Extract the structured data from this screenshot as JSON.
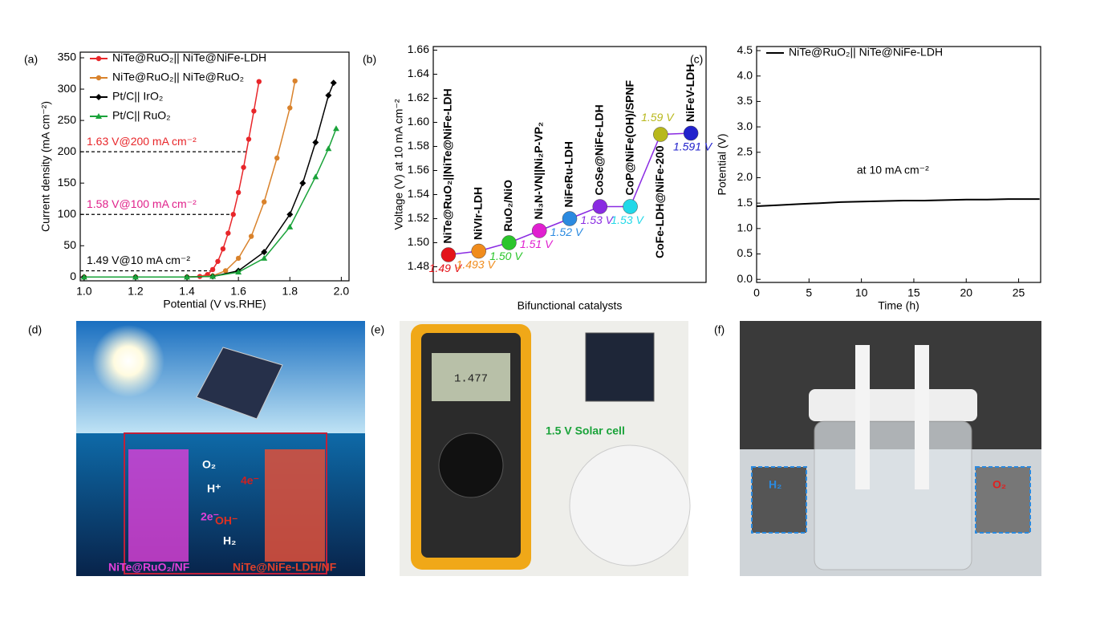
{
  "chart_data": [
    {
      "type": "line",
      "panel": "(a)",
      "x_label": "Potential (V vs.RHE)",
      "y_label": "Current density (mA cm⁻²)",
      "xlim": [
        0.985,
        2.03
      ],
      "xticks": [
        {
          "value": 1.0,
          "label": "1.0"
        },
        1.2,
        1.4,
        1.6,
        1.8,
        {
          "value": 2.0,
          "label": "2.0"
        }
      ],
      "ylim": [
        -6,
        359
      ],
      "yticks": [
        0,
        50,
        100,
        150,
        200,
        250,
        300,
        350
      ],
      "legend": "upper left",
      "series": [
        {
          "name": "NiTe@RuO₂|| NiTe@NiFe-LDH",
          "color": "#e8262a",
          "marker": "circle",
          "x": [
            1.0,
            1.2,
            1.4,
            1.45,
            1.48,
            1.5,
            1.52,
            1.54,
            1.56,
            1.58,
            1.6,
            1.62,
            1.64,
            1.66,
            1.68
          ],
          "values": [
            0,
            0,
            0,
            1,
            4,
            12,
            25,
            45,
            70,
            100,
            135,
            175,
            220,
            265,
            312
          ]
        },
        {
          "name": "NiTe@RuO₂|| NiTe@RuO₂",
          "color": "#d9822b",
          "marker": "circle",
          "x": [
            1.0,
            1.2,
            1.4,
            1.5,
            1.55,
            1.6,
            1.65,
            1.7,
            1.75,
            1.8,
            1.82
          ],
          "values": [
            0,
            0,
            0,
            2,
            10,
            30,
            65,
            120,
            190,
            270,
            313
          ]
        },
        {
          "name": "Pt/C|| IrO₂",
          "color": "#000000",
          "marker": "diamond",
          "x": [
            1.0,
            1.2,
            1.4,
            1.5,
            1.6,
            1.7,
            1.8,
            1.85,
            1.9,
            1.95,
            1.97
          ],
          "values": [
            0,
            0,
            0,
            1,
            10,
            40,
            100,
            150,
            215,
            290,
            310
          ]
        },
        {
          "name": "Pt/C|| RuO₂",
          "color": "#1aa33a",
          "marker": "triangle",
          "x": [
            1.0,
            1.2,
            1.4,
            1.5,
            1.6,
            1.7,
            1.8,
            1.9,
            1.95,
            1.98
          ],
          "values": [
            0,
            0,
            0,
            1,
            8,
            30,
            80,
            160,
            205,
            237
          ]
        }
      ],
      "annotations": [
        {
          "text": "1.63 V@200 mA cm⁻²",
          "x": 1.63,
          "y": 200,
          "color": "#e8262a"
        },
        {
          "text": "1.58 V@100 mA cm⁻²",
          "x": 1.58,
          "y": 100,
          "color": "#e0218a"
        },
        {
          "text": "1.49 V@10 mA cm⁻²",
          "x": 1.49,
          "y": 10,
          "color": "#000000"
        }
      ]
    },
    {
      "type": "scatter",
      "panel": "(b)",
      "x_label": "Bifunctional catalysts",
      "y_label": "Voltage (V)  at 10 mA cm⁻²",
      "ylim": [
        1.467,
        1.663
      ],
      "yticks": [
        1.48,
        {
          "value": 1.5,
          "label": "1.50"
        },
        1.52,
        1.54,
        1.56,
        1.58,
        {
          "value": 1.6,
          "label": "1.60"
        },
        1.62,
        1.64,
        1.66
      ],
      "line_color": "#8a2be2",
      "categories": [
        "NiTe@RuO₂||NiTe@NiFe-LDH",
        "NiVIr-LDH",
        "RuO₂/NiO",
        "Ni₃N-VN||Ni₂P-VP₂",
        "NiFeRu-LDH",
        "CoSe@NiFe-LDH",
        "CoP@NiFe(OH)/SPNF",
        "CoFe-LDH@NiFe-200",
        "NiFeV-LDH"
      ],
      "values": [
        1.49,
        1.493,
        1.5,
        1.51,
        1.52,
        1.53,
        1.53,
        1.59,
        1.591
      ],
      "value_labels": [
        "1.49 V",
        "1.493 V",
        "1.50 V",
        "1.51 V",
        "1.52 V",
        "1.53 V",
        "1.53 V",
        "1.59 V",
        "1.591 V"
      ],
      "colors": [
        "#e4141b",
        "#f08c1c",
        "#2bc52b",
        "#e020d0",
        "#2b8ae0",
        "#8a2be2",
        "#22d8e8",
        "#b8b81c",
        "#2222cc"
      ]
    },
    {
      "type": "line",
      "panel": "(c)",
      "x_label": "Time (h)",
      "y_label": "Potential (V)",
      "xlim": [
        0,
        27.1
      ],
      "xticks": [
        0,
        5,
        10,
        15,
        20,
        25
      ],
      "ylim": [
        -0.06,
        4.58
      ],
      "yticks": [
        {
          "value": 0,
          "label": "0.0"
        },
        0.5,
        {
          "value": 1,
          "label": "1.0"
        },
        1.5,
        {
          "value": 2,
          "label": "2.0"
        },
        2.5,
        {
          "value": 3,
          "label": "3.0"
        },
        3.5,
        {
          "value": 4,
          "label": "4.0"
        },
        4.5
      ],
      "legend": "upper left",
      "series": [
        {
          "name": "NiTe@RuO₂|| NiTe@NiFe-LDH",
          "color": "#000000",
          "marker": "none",
          "x": [
            0,
            2,
            4,
            6,
            8,
            10,
            12,
            14,
            16,
            18,
            20,
            22,
            24,
            26,
            27
          ],
          "values": [
            1.44,
            1.46,
            1.48,
            1.5,
            1.52,
            1.53,
            1.54,
            1.55,
            1.55,
            1.56,
            1.57,
            1.57,
            1.58,
            1.58,
            1.58
          ]
        }
      ],
      "annotations": [
        {
          "text": "at 10  mA cm⁻²",
          "x": 13,
          "y": 1.95,
          "color": "#000000"
        }
      ]
    }
  ],
  "panels": {
    "d": {
      "label": "(d)",
      "left": "NiTe@RuO₂/NF",
      "right": "NiTe@NiFe-LDH/NF",
      "o2": "O₂",
      "h2": "H₂",
      "hplus": "H⁺",
      "oh": "OH⁻",
      "e2": "2e⁻",
      "e4": "4e⁻"
    },
    "e": {
      "label": "(e)",
      "reading": "1.477",
      "caption": "1.5 V Solar cell"
    },
    "f": {
      "label": "(f)",
      "h2": "H₂",
      "o2": "O₂"
    }
  }
}
